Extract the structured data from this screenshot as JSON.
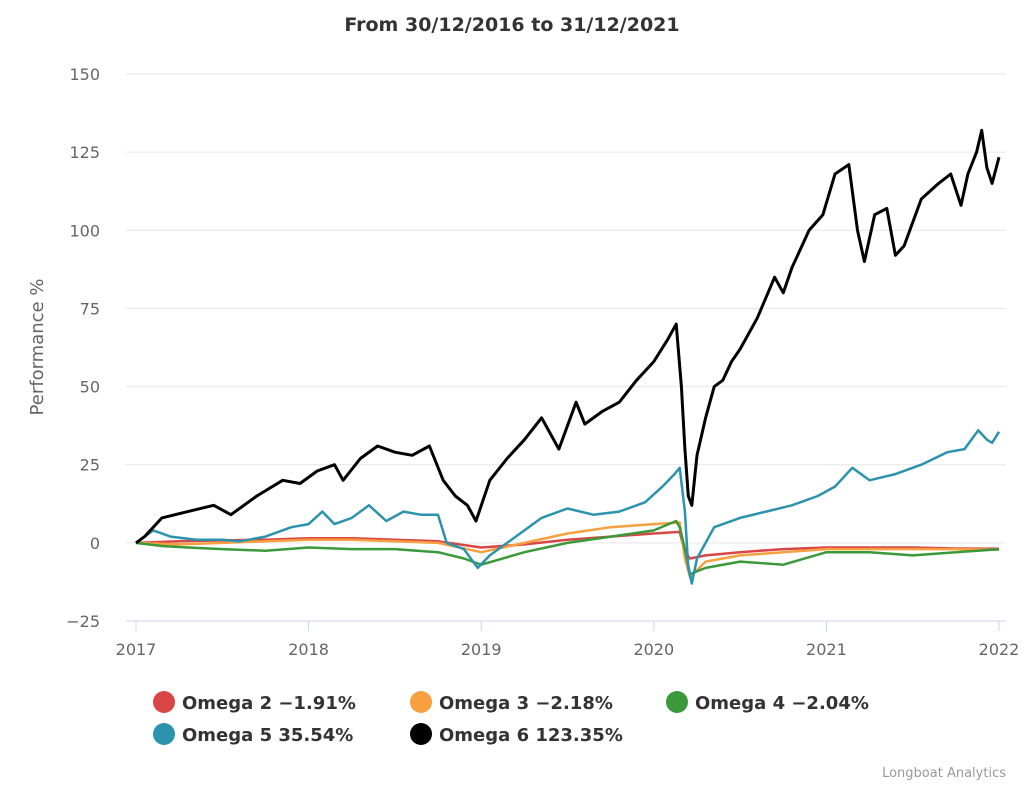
{
  "chart_data": {
    "type": "line",
    "title": "From 30/12/2016 to 31/12/2021",
    "ylabel": "Performance %",
    "xlabel": "",
    "xlim": [
      2017.0,
      2022.0
    ],
    "ylim": [
      -25,
      150
    ],
    "yticks": [
      -25,
      0,
      25,
      50,
      75,
      100,
      125,
      150
    ],
    "xticks": [
      {
        "value": 2017,
        "label": "2017"
      },
      {
        "value": 2018,
        "label": "2018"
      },
      {
        "value": 2019,
        "label": "2019"
      },
      {
        "value": 2020,
        "label": "2020"
      },
      {
        "value": 2021,
        "label": "2021"
      },
      {
        "value": 2022,
        "label": "2022"
      }
    ],
    "grid": true,
    "legend_position": "bottom",
    "series": [
      {
        "name": "Omega 2 -1.91%",
        "color": "#d94646",
        "x": [
          2017.0,
          2017.25,
          2017.5,
          2017.75,
          2018.0,
          2018.25,
          2018.5,
          2018.75,
          2019.0,
          2019.25,
          2019.5,
          2019.75,
          2020.0,
          2020.15,
          2020.18,
          2020.21,
          2020.3,
          2020.5,
          2020.75,
          2021.0,
          2021.25,
          2021.5,
          2021.75,
          2022.0
        ],
        "y": [
          0,
          0.5,
          0.8,
          1,
          1.5,
          1.5,
          1,
          0.5,
          -1.5,
          -0.5,
          1,
          2,
          3,
          3.5,
          -3,
          -5,
          -4,
          -3,
          -2,
          -1.5,
          -1.5,
          -1.5,
          -1.8,
          -1.91
        ]
      },
      {
        "name": "Omega 3 -2.18%",
        "color": "#f7a040",
        "x": [
          2017.0,
          2017.25,
          2017.5,
          2017.75,
          2018.0,
          2018.25,
          2018.5,
          2018.75,
          2019.0,
          2019.25,
          2019.5,
          2019.75,
          2020.0,
          2020.15,
          2020.18,
          2020.21,
          2020.3,
          2020.5,
          2020.75,
          2021.0,
          2021.25,
          2021.5,
          2021.75,
          2022.0
        ],
        "y": [
          0,
          -0.5,
          0,
          0.5,
          1,
          1,
          0.5,
          0,
          -3,
          0,
          3,
          5,
          6,
          6.5,
          -5,
          -11,
          -6,
          -4,
          -3,
          -2,
          -2,
          -2,
          -2,
          -2.18
        ]
      },
      {
        "name": "Omega 4 -2.04%",
        "color": "#3a9a3a",
        "x": [
          2017.0,
          2017.15,
          2017.3,
          2017.5,
          2017.75,
          2018.0,
          2018.25,
          2018.5,
          2018.75,
          2018.9,
          2019.0,
          2019.25,
          2019.5,
          2019.75,
          2020.0,
          2020.13,
          2020.15,
          2020.18,
          2020.21,
          2020.3,
          2020.5,
          2020.75,
          2021.0,
          2021.25,
          2021.5,
          2021.75,
          2022.0
        ],
        "y": [
          0,
          -1,
          -1.5,
          -2,
          -2.5,
          -1.5,
          -2,
          -2,
          -3,
          -5,
          -7,
          -3,
          0,
          2,
          4,
          7,
          5,
          -2,
          -10,
          -8,
          -6,
          -7,
          -3,
          -3,
          -4,
          -3,
          -2.04
        ]
      },
      {
        "name": "Omega 5 35.54%",
        "color": "#2b93ad",
        "x": [
          2017.0,
          2017.1,
          2017.2,
          2017.35,
          2017.5,
          2017.6,
          2017.75,
          2017.9,
          2018.0,
          2018.08,
          2018.15,
          2018.25,
          2018.35,
          2018.45,
          2018.55,
          2018.65,
          2018.75,
          2018.8,
          2018.9,
          2018.98,
          2019.05,
          2019.15,
          2019.25,
          2019.35,
          2019.5,
          2019.65,
          2019.8,
          2019.95,
          2020.05,
          2020.12,
          2020.15,
          2020.18,
          2020.2,
          2020.22,
          2020.25,
          2020.35,
          2020.5,
          2020.65,
          2020.8,
          2020.95,
          2021.05,
          2021.15,
          2021.25,
          2021.4,
          2021.55,
          2021.7,
          2021.8,
          2021.88,
          2021.93,
          2021.96,
          2022.0
        ],
        "y": [
          0,
          4,
          2,
          1,
          1,
          0.5,
          2,
          5,
          6,
          10,
          6,
          8,
          12,
          7,
          10,
          9,
          9,
          0,
          -2,
          -8,
          -4,
          0,
          4,
          8,
          11,
          9,
          10,
          13,
          18,
          22,
          24,
          10,
          -8,
          -13,
          -5,
          5,
          8,
          10,
          12,
          15,
          18,
          24,
          20,
          22,
          25,
          29,
          30,
          36,
          33,
          32,
          35.54
        ]
      },
      {
        "name": "Omega 6 123.35%",
        "color": "#000000",
        "x": [
          2017.0,
          2017.05,
          2017.15,
          2017.3,
          2017.45,
          2017.55,
          2017.7,
          2017.85,
          2017.95,
          2018.05,
          2018.15,
          2018.2,
          2018.3,
          2018.4,
          2018.5,
          2018.6,
          2018.7,
          2018.78,
          2018.85,
          2018.92,
          2018.97,
          2019.05,
          2019.15,
          2019.25,
          2019.35,
          2019.45,
          2019.55,
          2019.6,
          2019.7,
          2019.8,
          2019.9,
          2020.0,
          2020.08,
          2020.13,
          2020.16,
          2020.18,
          2020.2,
          2020.22,
          2020.25,
          2020.3,
          2020.35,
          2020.4,
          2020.45,
          2020.5,
          2020.6,
          2020.7,
          2020.75,
          2020.8,
          2020.9,
          2020.98,
          2021.05,
          2021.13,
          2021.18,
          2021.22,
          2021.28,
          2021.35,
          2021.4,
          2021.45,
          2021.55,
          2021.65,
          2021.72,
          2021.78,
          2021.82,
          2021.87,
          2021.9,
          2021.93,
          2021.96,
          2022.0
        ],
        "y": [
          0,
          2,
          8,
          10,
          12,
          9,
          15,
          20,
          19,
          23,
          25,
          20,
          27,
          31,
          29,
          28,
          31,
          20,
          15,
          12,
          7,
          20,
          27,
          33,
          40,
          30,
          45,
          38,
          42,
          45,
          52,
          58,
          65,
          70,
          50,
          30,
          15,
          12,
          28,
          40,
          50,
          52,
          58,
          62,
          72,
          85,
          80,
          88,
          100,
          105,
          118,
          121,
          100,
          90,
          105,
          107,
          92,
          95,
          110,
          115,
          118,
          108,
          118,
          125,
          132,
          120,
          115,
          123.35
        ]
      }
    ]
  },
  "credits": "Longboat Analytics"
}
